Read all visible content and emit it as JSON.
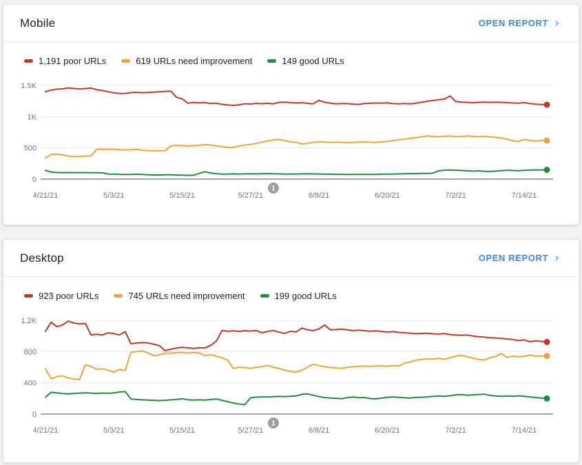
{
  "cards": [
    {
      "title": "Mobile",
      "open_report_label": "OPEN REPORT",
      "legend": [
        {
          "label": "1,191 poor URLs",
          "color": "#c5352b"
        },
        {
          "label": "619 URLs need improvement",
          "color": "#f1a33b"
        },
        {
          "label": "149 good URLs",
          "color": "#1e8e3e"
        }
      ]
    },
    {
      "title": "Desktop",
      "open_report_label": "OPEN REPORT",
      "legend": [
        {
          "label": "923 poor URLs",
          "color": "#c5352b"
        },
        {
          "label": "745 URLs need improvement",
          "color": "#f1a33b"
        },
        {
          "label": "199 good URLs",
          "color": "#1e8e3e"
        }
      ]
    }
  ],
  "colors": {
    "poor": "#c5352b",
    "needs_improvement": "#f1a33b",
    "good": "#1e8e3e",
    "link": "#4285f4",
    "axis_text": "#757575",
    "gridline": "#e8e8e8",
    "baseline": "#80868b",
    "annotation_marker": "#9e9e9e"
  },
  "chart_data": [
    {
      "type": "line",
      "title": "Mobile",
      "x_start_date": "4/21/21",
      "x_end_date": "7/18/21",
      "y_max": 1500,
      "grid": "horizontal-only",
      "y_ticks": [
        {
          "label": "1.5K",
          "value": 1500
        },
        {
          "label": "1K",
          "value": 1000
        },
        {
          "label": "500",
          "value": 500
        },
        {
          "label": "0",
          "value": 0
        }
      ],
      "x_ticks": [
        {
          "label": "4/21/21",
          "day": 0
        },
        {
          "label": "5/3/21",
          "day": 12
        },
        {
          "label": "5/15/21",
          "day": 24
        },
        {
          "label": "5/27/21",
          "day": 36
        },
        {
          "label": "6/8/21",
          "day": 48
        },
        {
          "label": "6/20/21",
          "day": 60
        },
        {
          "label": "7/2/21",
          "day": 72
        },
        {
          "label": "7/14/21",
          "day": 84
        }
      ],
      "annotation": {
        "label": "1",
        "day": 40
      },
      "series": [
        {
          "name": "poor URLs",
          "color": "#c5352b",
          "end_value": 1191,
          "values": [
            1400,
            1425,
            1440,
            1445,
            1460,
            1452,
            1443,
            1450,
            1458,
            1432,
            1418,
            1398,
            1382,
            1370,
            1372,
            1385,
            1390,
            1383,
            1388,
            1392,
            1398,
            1403,
            1408,
            1310,
            1285,
            1215,
            1228,
            1220,
            1224,
            1212,
            1215,
            1197,
            1187,
            1180,
            1190,
            1207,
            1202,
            1213,
            1208,
            1214,
            1206,
            1229,
            1233,
            1224,
            1219,
            1223,
            1213,
            1206,
            1262,
            1230,
            1217,
            1206,
            1211,
            1209,
            1201,
            1196,
            1211,
            1214,
            1219,
            1216,
            1221,
            1209,
            1206,
            1211,
            1206,
            1216,
            1230,
            1246,
            1259,
            1271,
            1281,
            1330,
            1243,
            1233,
            1229,
            1223,
            1229,
            1233,
            1229,
            1233,
            1229,
            1224,
            1219,
            1214,
            1224,
            1211,
            1201,
            1195,
            1191
          ]
        },
        {
          "name": "URLs need improvement",
          "color": "#f1a33b",
          "end_value": 619,
          "values": [
            340,
            395,
            400,
            390,
            368,
            358,
            362,
            366,
            372,
            478,
            480,
            477,
            480,
            472,
            467,
            472,
            476,
            462,
            456,
            456,
            452,
            457,
            532,
            540,
            536,
            531,
            536,
            541,
            551,
            546,
            531,
            521,
            506,
            511,
            531,
            546,
            556,
            571,
            591,
            611,
            628,
            634,
            616,
            598,
            588,
            562,
            572,
            588,
            598,
            592,
            588,
            592,
            588,
            584,
            588,
            592,
            596,
            590,
            586,
            596,
            606,
            616,
            628,
            640,
            652,
            664,
            676,
            690,
            684,
            678,
            684,
            690,
            678,
            684,
            690,
            684,
            678,
            684,
            676,
            668,
            660,
            640,
            614,
            600,
            634,
            618,
            610,
            616,
            619
          ]
        },
        {
          "name": "good URLs",
          "color": "#1e8e3e",
          "end_value": 149,
          "values": [
            140,
            112,
            106,
            104,
            105,
            104,
            105,
            104,
            103,
            102,
            100,
            82,
            80,
            76,
            74,
            74,
            78,
            74,
            70,
            66,
            66,
            70,
            70,
            66,
            64,
            60,
            62,
            92,
            118,
            98,
            86,
            80,
            82,
            84,
            82,
            84,
            86,
            84,
            86,
            88,
            86,
            84,
            82,
            80,
            82,
            84,
            86,
            84,
            82,
            80,
            78,
            76,
            76,
            74,
            74,
            76,
            76,
            74,
            76,
            78,
            80,
            82,
            84,
            86,
            88,
            88,
            90,
            92,
            94,
            132,
            142,
            146,
            142,
            138,
            132,
            128,
            132,
            126,
            122,
            128,
            136,
            142,
            138,
            134,
            140,
            144,
            148,
            146,
            149
          ]
        }
      ]
    },
    {
      "type": "line",
      "title": "Desktop",
      "x_start_date": "4/21/21",
      "x_end_date": "7/18/21",
      "y_max": 1200,
      "grid": "horizontal-only",
      "y_ticks": [
        {
          "label": "1.2K",
          "value": 1200
        },
        {
          "label": "800",
          "value": 800
        },
        {
          "label": "400",
          "value": 400
        },
        {
          "label": "0",
          "value": 0
        }
      ],
      "x_ticks": [
        {
          "label": "4/21/21",
          "day": 0
        },
        {
          "label": "5/3/21",
          "day": 12
        },
        {
          "label": "5/15/21",
          "day": 24
        },
        {
          "label": "5/27/21",
          "day": 36
        },
        {
          "label": "6/8/21",
          "day": 48
        },
        {
          "label": "6/20/21",
          "day": 60
        },
        {
          "label": "7/2/21",
          "day": 72
        },
        {
          "label": "7/14/21",
          "day": 84
        }
      ],
      "annotation": {
        "label": "1",
        "day": 40
      },
      "series": [
        {
          "name": "poor URLs",
          "color": "#c5352b",
          "end_value": 923,
          "values": [
            1060,
            1175,
            1120,
            1140,
            1190,
            1165,
            1155,
            1160,
            1012,
            1022,
            1012,
            1040,
            1030,
            1012,
            1055,
            900,
            910,
            915,
            910,
            895,
            875,
            812,
            830,
            845,
            855,
            848,
            840,
            850,
            845,
            880,
            935,
            1070,
            1060,
            1065,
            1058,
            1068,
            1062,
            1070,
            1040,
            1058,
            1070,
            1048,
            1032,
            1060,
            1052,
            1100,
            1078,
            1068,
            1090,
            1140,
            1078,
            1082,
            1088,
            1078,
            1068,
            1075,
            1068,
            1060,
            1065,
            1058,
            1050,
            1056,
            1046,
            1040,
            1036,
            1030,
            1032,
            1035,
            1028,
            1024,
            1030,
            1018,
            1012,
            1008,
            1012,
            1000,
            990,
            985,
            978,
            974,
            968,
            962,
            955,
            940,
            950,
            926,
            936,
            930,
            923
          ]
        },
        {
          "name": "URLs need improvement",
          "color": "#f1a33b",
          "end_value": 745,
          "values": [
            580,
            452,
            478,
            490,
            462,
            448,
            442,
            630,
            610,
            572,
            580,
            562,
            535,
            570,
            558,
            790,
            800,
            810,
            782,
            748,
            756,
            780,
            778,
            786,
            790,
            780,
            790,
            780,
            748,
            760,
            740,
            718,
            690,
            582,
            600,
            595,
            585,
            598,
            608,
            622,
            600,
            582,
            562,
            545,
            538,
            560,
            600,
            638,
            620,
            605,
            596,
            590,
            585,
            598,
            604,
            610,
            614,
            610,
            615,
            618,
            611,
            620,
            615,
            652,
            668,
            688,
            698,
            708,
            704,
            714,
            700,
            720,
            740,
            752,
            735,
            716,
            700,
            692,
            720,
            738,
            775,
            726,
            740,
            734,
            738,
            756,
            742,
            744,
            745
          ]
        },
        {
          "name": "good URLs",
          "color": "#1e8e3e",
          "end_value": 199,
          "values": [
            215,
            278,
            272,
            262,
            258,
            264,
            268,
            272,
            268,
            264,
            268,
            266,
            270,
            282,
            288,
            192,
            186,
            182,
            178,
            176,
            172,
            176,
            182,
            186,
            196,
            182,
            178,
            182,
            178,
            186,
            192,
            176,
            158,
            140,
            128,
            120,
            208,
            216,
            220,
            218,
            222,
            226,
            222,
            228,
            232,
            252,
            258,
            242,
            222,
            212,
            206,
            200,
            196,
            212,
            218,
            208,
            212,
            198,
            194,
            204,
            214,
            220,
            214,
            208,
            204,
            214,
            214,
            220,
            226,
            230,
            226,
            234,
            244,
            250,
            240,
            244,
            250,
            254,
            240,
            230,
            226,
            230,
            226,
            234,
            228,
            220,
            212,
            204,
            199
          ]
        }
      ]
    }
  ]
}
